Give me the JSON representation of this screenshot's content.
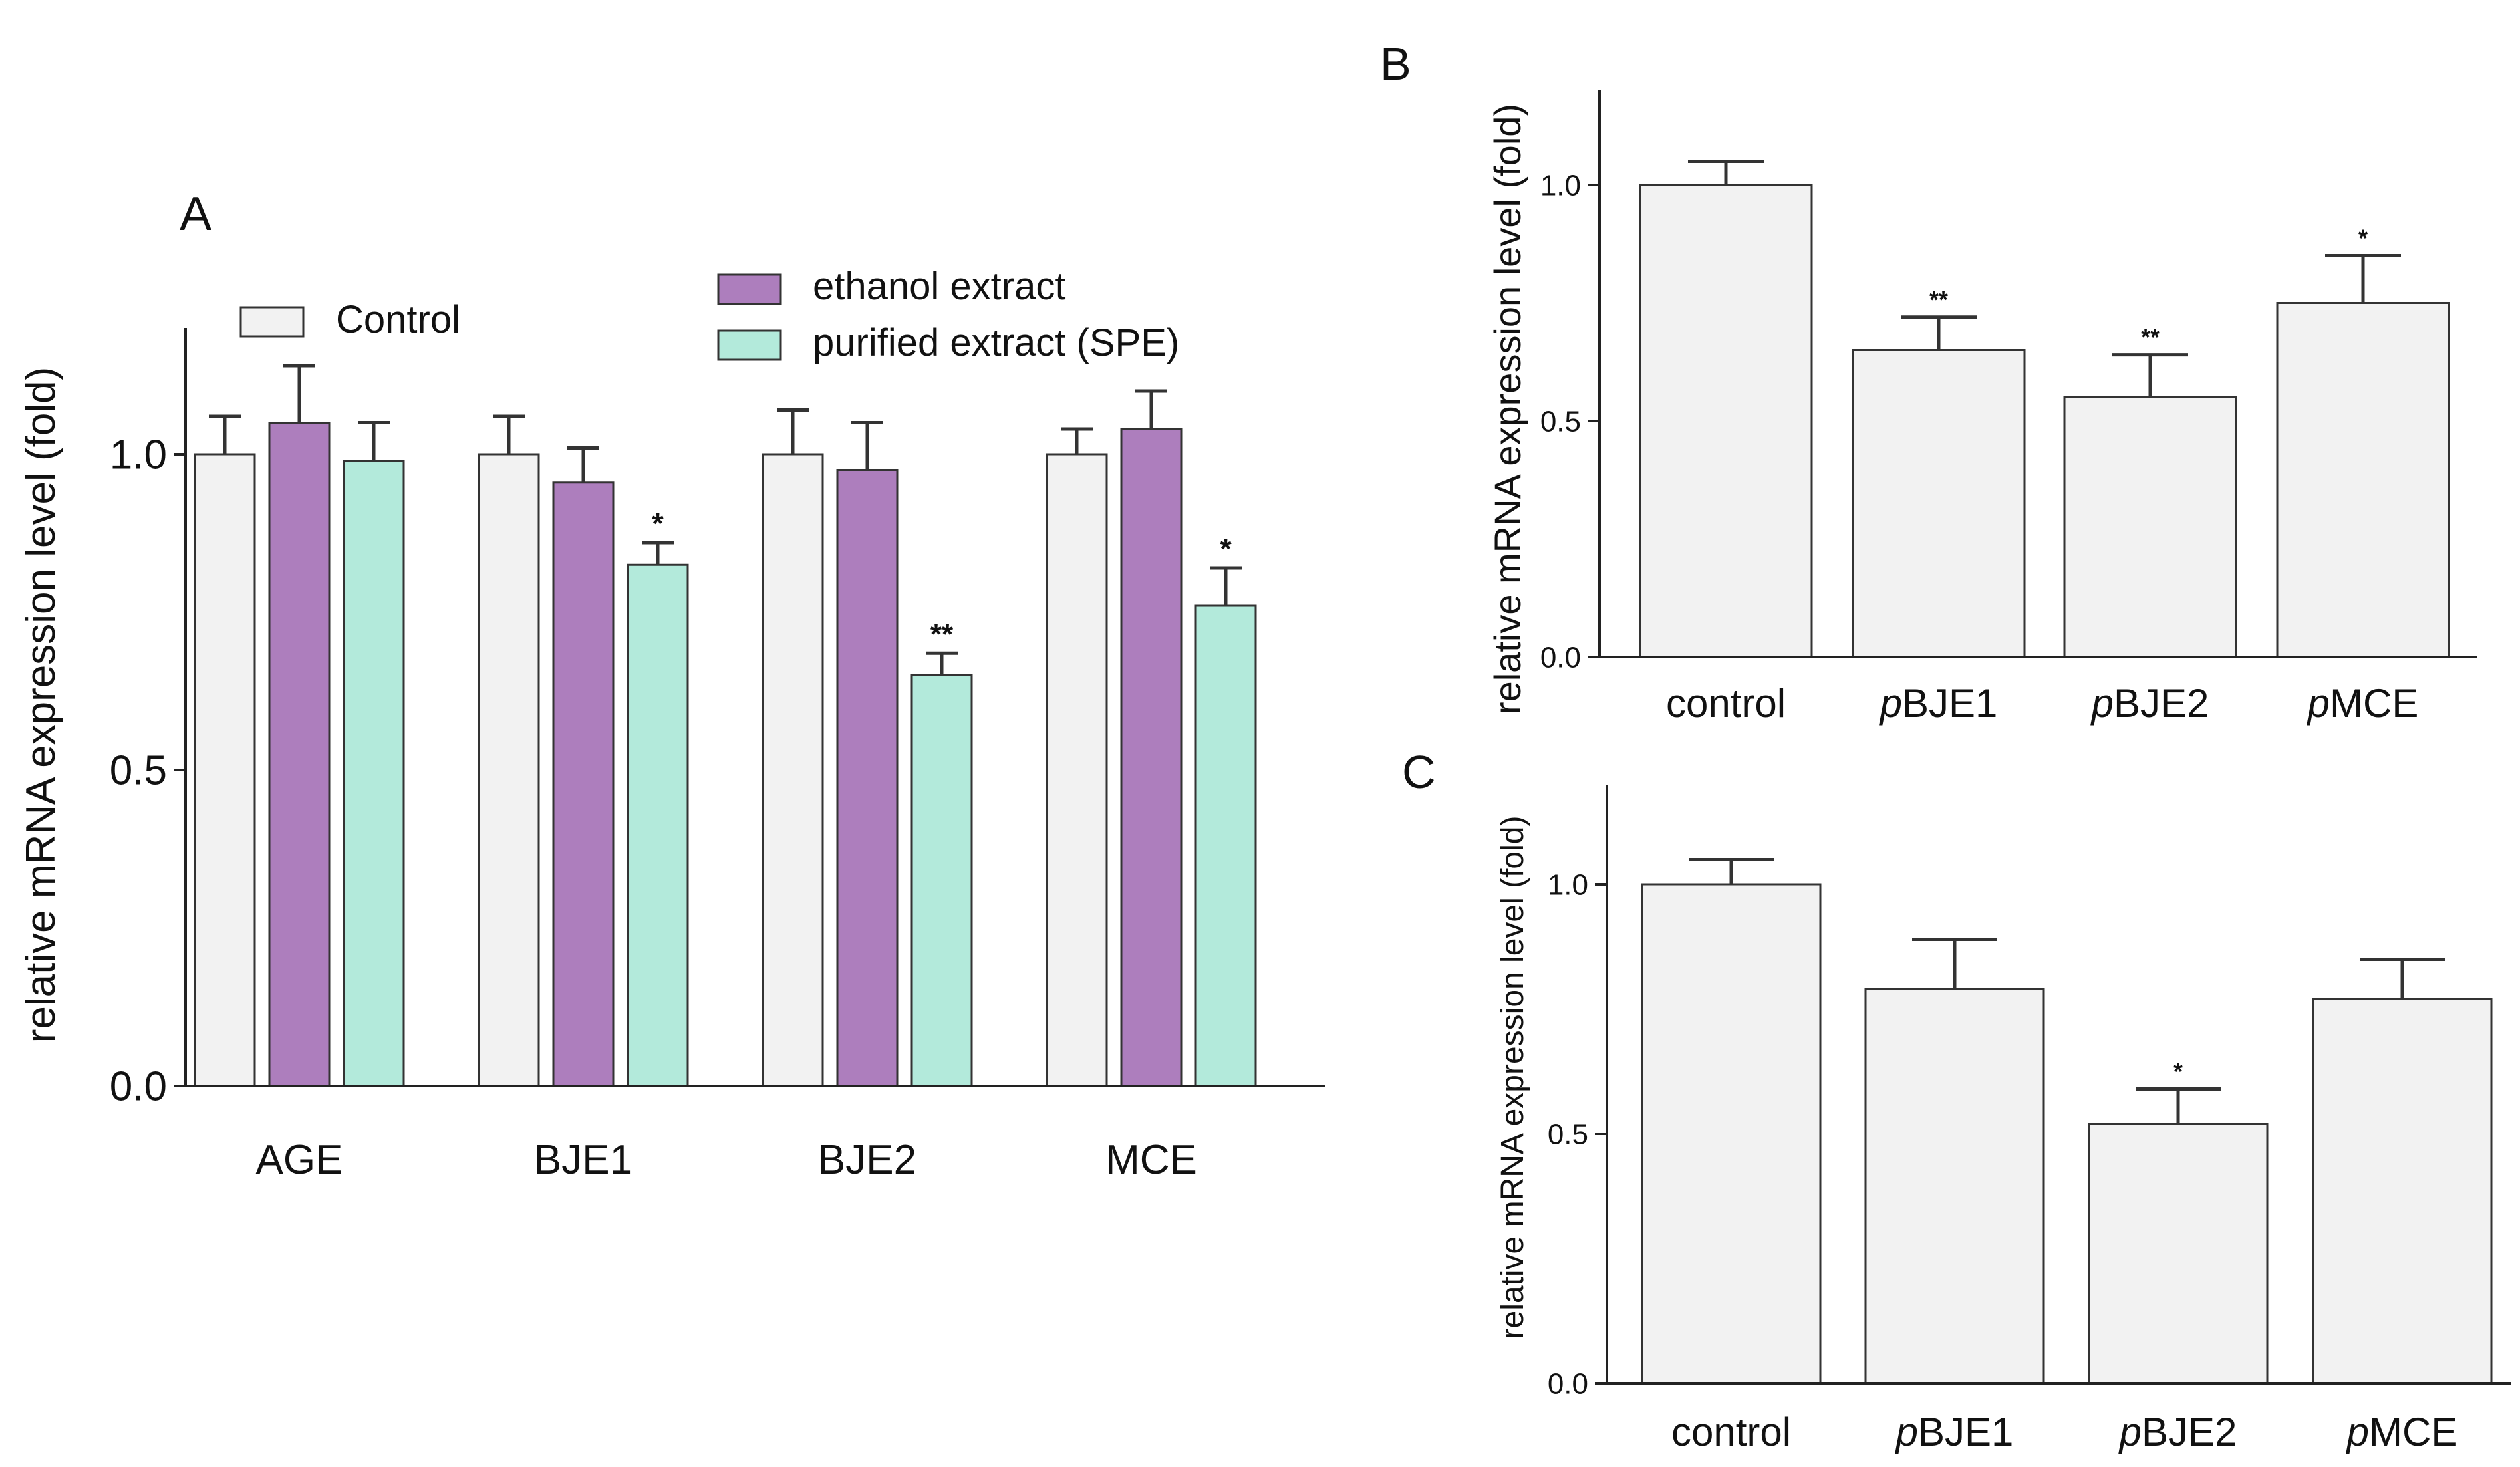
{
  "colors": {
    "control": "#f2f2f2",
    "ethanol": "#ad7ebd",
    "purified": "#b3eadb",
    "edge": "#333333",
    "axis": "#222222"
  },
  "chart_data": [
    {
      "id": "A",
      "panel_label": "A",
      "type": "bar",
      "ylabel": "relative mRNA expression level (fold)",
      "ylim": [
        0,
        1.2
      ],
      "yticks": [
        0.0,
        0.5,
        1.0
      ],
      "ytick_labels": [
        "0.0",
        "0.5",
        "1.0"
      ],
      "categories": [
        "AGE",
        "BJE1",
        "BJE2",
        "MCE"
      ],
      "series": [
        {
          "name": "Control",
          "color": "#f2f2f2",
          "values": [
            1.0,
            1.0,
            1.0,
            1.0
          ],
          "errors": [
            0.06,
            0.06,
            0.07,
            0.04
          ],
          "marks": [
            "",
            "",
            "",
            ""
          ]
        },
        {
          "name": "ethanol extract",
          "color": "#ad7ebd",
          "values": [
            1.05,
            0.955,
            0.975,
            1.04
          ],
          "errors": [
            0.09,
            0.055,
            0.075,
            0.06
          ],
          "marks": [
            "",
            "",
            "",
            ""
          ]
        },
        {
          "name": "purified extract (SPE)",
          "color": "#b3eadb",
          "values": [
            0.99,
            0.825,
            0.65,
            0.76
          ],
          "errors": [
            0.06,
            0.035,
            0.035,
            0.06
          ],
          "marks": [
            "",
            "*",
            "**",
            "*"
          ]
        }
      ],
      "legend_position": "top"
    },
    {
      "id": "B",
      "panel_label": "B",
      "type": "bar",
      "ylabel": "relative mRNA expression level (fold)",
      "ylim": [
        0,
        1.2
      ],
      "yticks": [
        0.0,
        0.5,
        1.0
      ],
      "ytick_labels": [
        "0.0",
        "0.5",
        "1.0"
      ],
      "categories": [
        {
          "prefix": "",
          "text": "control"
        },
        {
          "prefix": "p",
          "text": "BJE1"
        },
        {
          "prefix": "p",
          "text": "BJE2"
        },
        {
          "prefix": "p",
          "text": "MCE"
        }
      ],
      "values": [
        1.0,
        0.65,
        0.55,
        0.75
      ],
      "errors": [
        0.05,
        0.07,
        0.09,
        0.1
      ],
      "marks": [
        "",
        "**",
        "**",
        "*"
      ]
    },
    {
      "id": "C",
      "panel_label": "C",
      "type": "bar",
      "ylabel": "relative mRNA expression level (fold)",
      "ylim": [
        0,
        1.2
      ],
      "yticks": [
        0.0,
        0.5,
        1.0
      ],
      "ytick_labels": [
        "0.0",
        "0.5",
        "1.0"
      ],
      "categories": [
        {
          "prefix": "",
          "text": "control"
        },
        {
          "prefix": "p",
          "text": "BJE1"
        },
        {
          "prefix": "p",
          "text": "BJE2"
        },
        {
          "prefix": "p",
          "text": "MCE"
        }
      ],
      "values": [
        1.0,
        0.79,
        0.52,
        0.77
      ],
      "errors": [
        0.05,
        0.1,
        0.07,
        0.08
      ],
      "marks": [
        "",
        "",
        "*",
        ""
      ]
    }
  ]
}
